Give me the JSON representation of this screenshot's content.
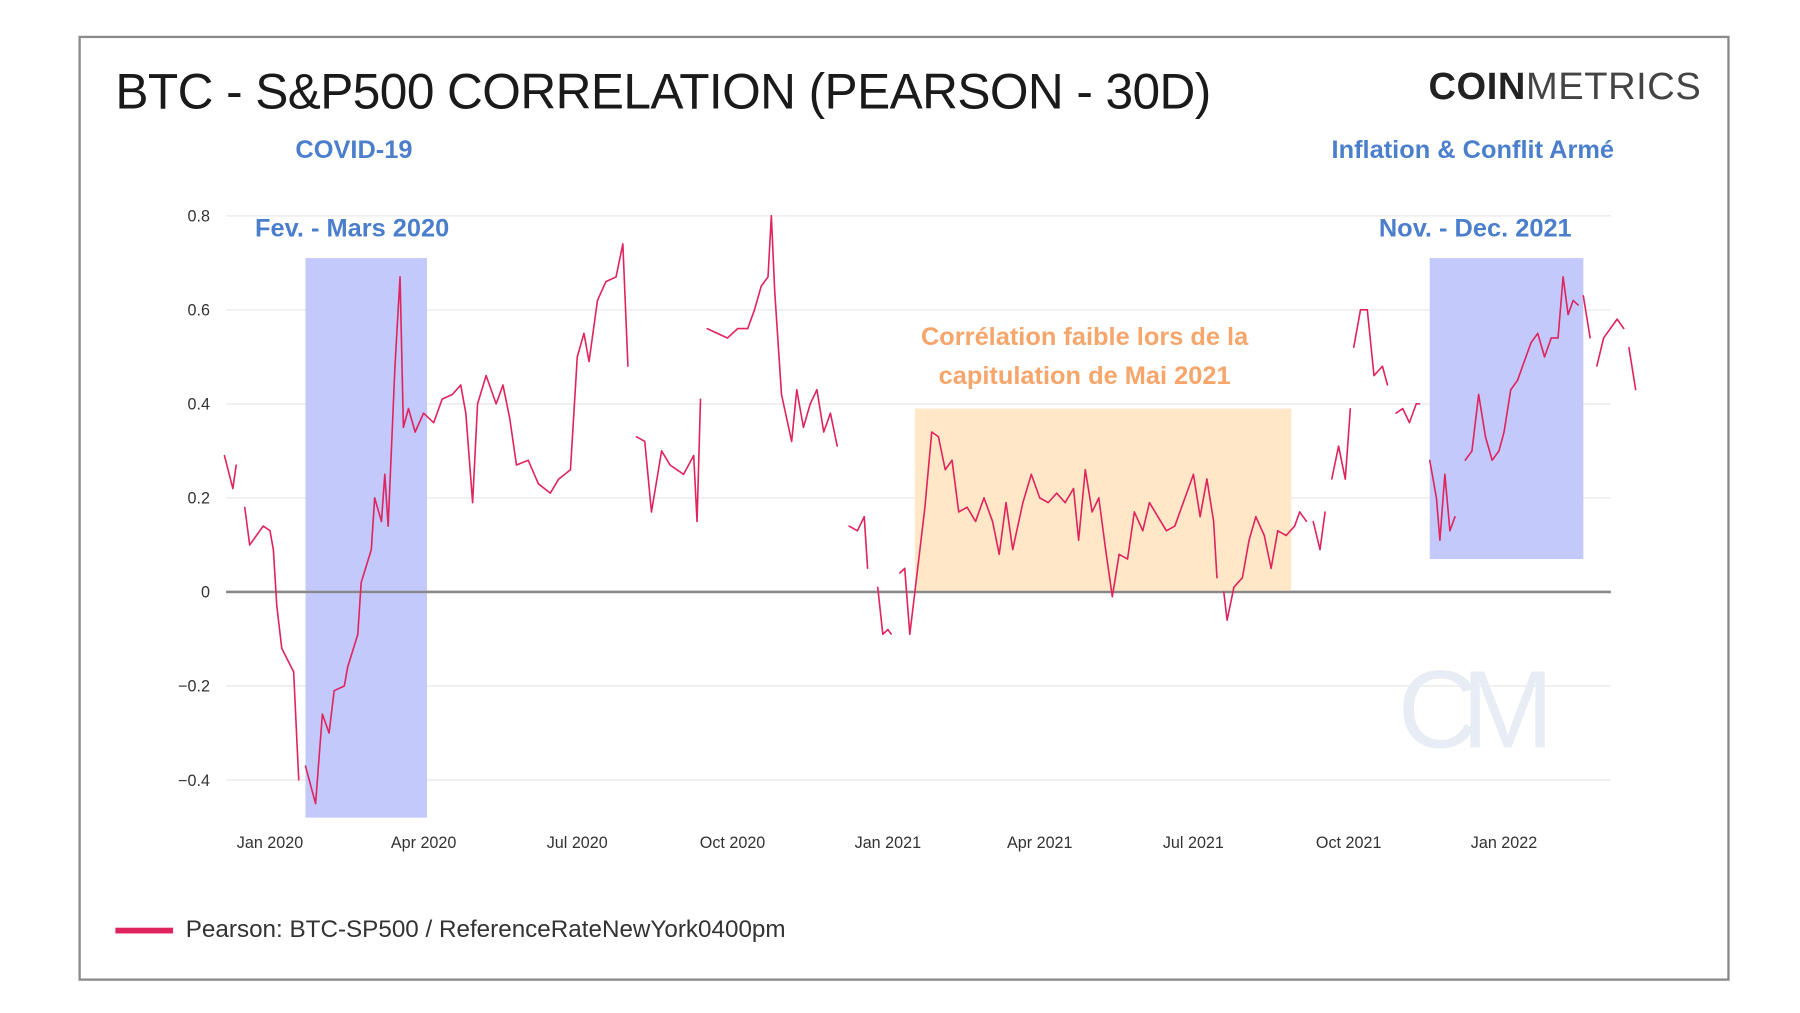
{
  "title": "BTC - S&P500 CORRELATION (PEARSON - 30D)",
  "logo": {
    "bold": "COIN",
    "light": "METRICS",
    "watermark": "CM"
  },
  "annotations": {
    "covid": "COVID-19",
    "covid_period": "Fev. - Mars 2020",
    "inflation": "Inflation & Conflit Armé",
    "inflation_period": "Nov. - Dec. 2021",
    "weak_line1": "Corrélation faible lors de la",
    "weak_line2": "capitulation de Mai 2021"
  },
  "legend": {
    "label": "Pearson: BTC-SP500 / ReferenceRateNewYork0400pm"
  },
  "colors": {
    "line": "#e0245e",
    "blue_region": "#c3c9fb",
    "orange_region": "#ffe7c7",
    "blue_text": "#4b7fcc",
    "orange_text": "#f6a56b"
  },
  "chart_data": {
    "type": "line",
    "title": "BTC - S&P500 CORRELATION (PEARSON - 30D)",
    "xlabel": "",
    "ylabel": "",
    "ylim": [
      -0.48,
      0.8
    ],
    "xlim": [
      "2019-12-05",
      "2022-03-20"
    ],
    "grid": true,
    "legend_position": "bottom-left",
    "y_ticks": [
      0.8,
      0.6,
      0.4,
      0.2,
      0,
      -0.2,
      -0.4
    ],
    "y_tick_labels": [
      "0.8",
      "0.6",
      "0.4",
      "0.2",
      "0",
      "−0.2",
      "−0.4"
    ],
    "x_ticks": [
      "2020-01-01",
      "2020-04-01",
      "2020-07-01",
      "2020-10-01",
      "2021-01-01",
      "2021-04-01",
      "2021-07-01",
      "2021-10-01",
      "2022-01-01"
    ],
    "x_tick_labels": [
      "Jan 2020",
      "Apr 2020",
      "Jul 2020",
      "Oct 2020",
      "Jan 2021",
      "Apr 2021",
      "Jul 2021",
      "Oct 2021",
      "Jan 2022"
    ],
    "regions": [
      {
        "x": [
          "2020-01-22",
          "2020-04-03"
        ],
        "y": [
          -0.48,
          0.71
        ],
        "color": "blue"
      },
      {
        "x": [
          "2021-01-17",
          "2021-08-28"
        ],
        "y": [
          0,
          0.39
        ],
        "color": "orange"
      },
      {
        "x": [
          "2021-11-18",
          "2022-02-17"
        ],
        "y": [
          0.07,
          0.71
        ],
        "color": "blue"
      }
    ],
    "series": [
      {
        "name": "Pearson: BTC-SP500 / ReferenceRateNewYork0400pm",
        "points": [
          [
            "2019-12-05",
            0.29
          ],
          [
            "2019-12-10",
            0.22
          ],
          [
            "2019-12-12",
            0.27
          ],
          [
            "2019-12-14",
            null
          ],
          [
            "2019-12-17",
            0.18
          ],
          [
            "2019-12-20",
            0.1
          ],
          [
            "2019-12-28",
            0.14
          ],
          [
            "2020-01-01",
            0.13
          ],
          [
            "2020-01-03",
            0.09
          ],
          [
            "2020-01-05",
            -0.03
          ],
          [
            "2020-01-08",
            -0.12
          ],
          [
            "2020-01-15",
            -0.17
          ],
          [
            "2020-01-18",
            -0.4
          ],
          [
            "2020-01-20",
            null
          ],
          [
            "2020-01-22",
            -0.37
          ],
          [
            "2020-01-28",
            -0.45
          ],
          [
            "2020-02-01",
            -0.26
          ],
          [
            "2020-02-05",
            -0.3
          ],
          [
            "2020-02-08",
            -0.21
          ],
          [
            "2020-02-14",
            -0.2
          ],
          [
            "2020-02-16",
            -0.16
          ],
          [
            "2020-02-22",
            -0.09
          ],
          [
            "2020-02-24",
            0.02
          ],
          [
            "2020-03-01",
            0.09
          ],
          [
            "2020-03-03",
            0.2
          ],
          [
            "2020-03-07",
            0.15
          ],
          [
            "2020-03-09",
            0.25
          ],
          [
            "2020-03-11",
            0.14
          ],
          [
            "2020-03-15",
            0.48
          ],
          [
            "2020-03-18",
            0.67
          ],
          [
            "2020-03-20",
            0.35
          ],
          [
            "2020-03-23",
            0.39
          ],
          [
            "2020-03-27",
            0.34
          ],
          [
            "2020-04-01",
            0.38
          ],
          [
            "2020-04-07",
            0.36
          ],
          [
            "2020-04-12",
            0.41
          ],
          [
            "2020-04-18",
            0.42
          ],
          [
            "2020-04-23",
            0.44
          ],
          [
            "2020-04-26",
            0.38
          ],
          [
            "2020-04-30",
            0.19
          ],
          [
            "2020-05-03",
            0.4
          ],
          [
            "2020-05-08",
            0.46
          ],
          [
            "2020-05-14",
            0.4
          ],
          [
            "2020-05-18",
            0.44
          ],
          [
            "2020-05-22",
            0.37
          ],
          [
            "2020-05-26",
            0.27
          ],
          [
            "2020-06-02",
            0.28
          ],
          [
            "2020-06-08",
            0.23
          ],
          [
            "2020-06-15",
            0.21
          ],
          [
            "2020-06-20",
            0.24
          ],
          [
            "2020-06-27",
            0.26
          ],
          [
            "2020-07-01",
            0.5
          ],
          [
            "2020-07-05",
            0.55
          ],
          [
            "2020-07-08",
            0.49
          ],
          [
            "2020-07-13",
            0.62
          ],
          [
            "2020-07-18",
            0.66
          ],
          [
            "2020-07-24",
            0.67
          ],
          [
            "2020-07-28",
            0.74
          ],
          [
            "2020-07-31",
            0.48
          ],
          [
            "2020-08-02",
            null
          ],
          [
            "2020-08-05",
            0.33
          ],
          [
            "2020-08-10",
            0.32
          ],
          [
            "2020-08-14",
            0.17
          ],
          [
            "2020-08-20",
            0.3
          ],
          [
            "2020-08-25",
            0.27
          ],
          [
            "2020-09-02",
            0.25
          ],
          [
            "2020-09-08",
            0.29
          ],
          [
            "2020-09-10",
            0.15
          ],
          [
            "2020-09-12",
            0.41
          ],
          [
            "2020-09-14",
            null
          ],
          [
            "2020-09-16",
            0.56
          ],
          [
            "2020-09-22",
            0.55
          ],
          [
            "2020-09-28",
            0.54
          ],
          [
            "2020-10-04",
            0.56
          ],
          [
            "2020-10-10",
            0.56
          ],
          [
            "2020-10-14",
            0.6
          ],
          [
            "2020-10-18",
            0.65
          ],
          [
            "2020-10-22",
            0.67
          ],
          [
            "2020-10-24",
            0.8
          ],
          [
            "2020-10-26",
            0.64
          ],
          [
            "2020-10-30",
            0.42
          ],
          [
            "2020-11-02",
            0.37
          ],
          [
            "2020-11-05",
            0.32
          ],
          [
            "2020-11-08",
            0.43
          ],
          [
            "2020-11-12",
            0.35
          ],
          [
            "2020-11-16",
            0.4
          ],
          [
            "2020-11-20",
            0.43
          ],
          [
            "2020-11-24",
            0.34
          ],
          [
            "2020-11-28",
            0.38
          ],
          [
            "2020-12-02",
            0.31
          ],
          [
            "2020-12-05",
            null
          ],
          [
            "2020-12-09",
            0.14
          ],
          [
            "2020-12-14",
            0.13
          ],
          [
            "2020-12-18",
            0.16
          ],
          [
            "2020-12-20",
            0.05
          ],
          [
            "2020-12-23",
            null
          ],
          [
            "2020-12-26",
            0.01
          ],
          [
            "2020-12-29",
            -0.09
          ],
          [
            "2021-01-01",
            -0.08
          ],
          [
            "2021-01-03",
            -0.09
          ],
          [
            "2021-01-05",
            null
          ],
          [
            "2021-01-08",
            0.04
          ],
          [
            "2021-01-11",
            0.05
          ],
          [
            "2021-01-14",
            -0.09
          ],
          [
            "2021-01-19",
            0.06
          ],
          [
            "2021-01-23",
            0.18
          ],
          [
            "2021-01-27",
            0.34
          ],
          [
            "2021-01-31",
            0.33
          ],
          [
            "2021-02-04",
            0.26
          ],
          [
            "2021-02-08",
            0.28
          ],
          [
            "2021-02-12",
            0.17
          ],
          [
            "2021-02-17",
            0.18
          ],
          [
            "2021-02-22",
            0.15
          ],
          [
            "2021-02-27",
            0.2
          ],
          [
            "2021-03-04",
            0.15
          ],
          [
            "2021-03-08",
            0.08
          ],
          [
            "2021-03-12",
            0.19
          ],
          [
            "2021-03-16",
            0.09
          ],
          [
            "2021-03-22",
            0.19
          ],
          [
            "2021-03-27",
            0.25
          ],
          [
            "2021-04-01",
            0.2
          ],
          [
            "2021-04-06",
            0.19
          ],
          [
            "2021-04-11",
            0.21
          ],
          [
            "2021-04-16",
            0.19
          ],
          [
            "2021-04-21",
            0.22
          ],
          [
            "2021-04-24",
            0.11
          ],
          [
            "2021-04-28",
            0.26
          ],
          [
            "2021-05-02",
            0.17
          ],
          [
            "2021-05-06",
            0.2
          ],
          [
            "2021-05-10",
            0.09
          ],
          [
            "2021-05-14",
            -0.01
          ],
          [
            "2021-05-18",
            0.08
          ],
          [
            "2021-05-23",
            0.07
          ],
          [
            "2021-05-27",
            0.17
          ],
          [
            "2021-06-01",
            0.13
          ],
          [
            "2021-06-05",
            0.19
          ],
          [
            "2021-06-10",
            0.16
          ],
          [
            "2021-06-15",
            0.13
          ],
          [
            "2021-06-20",
            0.14
          ],
          [
            "2021-06-25",
            0.19
          ],
          [
            "2021-07-01",
            0.25
          ],
          [
            "2021-07-05",
            0.16
          ],
          [
            "2021-07-09",
            0.24
          ],
          [
            "2021-07-13",
            0.15
          ],
          [
            "2021-07-15",
            0.03
          ],
          [
            "2021-07-17",
            null
          ],
          [
            "2021-07-19",
            0.0
          ],
          [
            "2021-07-21",
            -0.06
          ],
          [
            "2021-07-25",
            0.01
          ],
          [
            "2021-07-30",
            0.03
          ],
          [
            "2021-08-03",
            0.11
          ],
          [
            "2021-08-07",
            0.16
          ],
          [
            "2021-08-12",
            0.12
          ],
          [
            "2021-08-16",
            0.05
          ],
          [
            "2021-08-20",
            0.13
          ],
          [
            "2021-08-25",
            0.12
          ],
          [
            "2021-08-30",
            0.14
          ],
          [
            "2021-09-02",
            0.17
          ],
          [
            "2021-09-06",
            0.15
          ],
          [
            "2021-09-08",
            null
          ],
          [
            "2021-09-10",
            0.15
          ],
          [
            "2021-09-14",
            0.09
          ],
          [
            "2021-09-17",
            0.17
          ],
          [
            "2021-09-19",
            null
          ],
          [
            "2021-09-21",
            0.24
          ],
          [
            "2021-09-25",
            0.31
          ],
          [
            "2021-09-29",
            0.24
          ],
          [
            "2021-10-02",
            0.39
          ],
          [
            "2021-10-03",
            null
          ],
          [
            "2021-10-04",
            0.52
          ],
          [
            "2021-10-08",
            0.6
          ],
          [
            "2021-10-12",
            0.6
          ],
          [
            "2021-10-16",
            0.46
          ],
          [
            "2021-10-21",
            0.48
          ],
          [
            "2021-10-24",
            0.44
          ],
          [
            "2021-10-26",
            null
          ],
          [
            "2021-10-29",
            0.38
          ],
          [
            "2021-11-02",
            0.39
          ],
          [
            "2021-11-06",
            0.36
          ],
          [
            "2021-11-10",
            0.4
          ],
          [
            "2021-11-12",
            0.4
          ],
          [
            "2021-11-15",
            null
          ],
          [
            "2021-11-18",
            0.28
          ],
          [
            "2021-11-22",
            0.2
          ],
          [
            "2021-11-24",
            0.11
          ],
          [
            "2021-11-27",
            0.25
          ],
          [
            "2021-11-30",
            0.13
          ],
          [
            "2021-12-03",
            0.16
          ],
          [
            "2021-12-06",
            null
          ],
          [
            "2021-12-09",
            0.28
          ],
          [
            "2021-12-13",
            0.3
          ],
          [
            "2021-12-17",
            0.42
          ],
          [
            "2021-12-21",
            0.33
          ],
          [
            "2021-12-25",
            0.28
          ],
          [
            "2021-12-29",
            0.3
          ],
          [
            "2022-01-01",
            0.34
          ],
          [
            "2022-01-05",
            0.43
          ],
          [
            "2022-01-09",
            0.45
          ],
          [
            "2022-01-13",
            0.49
          ],
          [
            "2022-01-17",
            0.53
          ],
          [
            "2022-01-21",
            0.55
          ],
          [
            "2022-01-25",
            0.5
          ],
          [
            "2022-01-29",
            0.54
          ],
          [
            "2022-02-02",
            0.54
          ],
          [
            "2022-02-05",
            0.67
          ],
          [
            "2022-02-08",
            0.59
          ],
          [
            "2022-02-11",
            0.62
          ],
          [
            "2022-02-14",
            0.61
          ],
          [
            "2022-02-15",
            null
          ],
          [
            "2022-02-17",
            0.63
          ],
          [
            "2022-02-21",
            0.54
          ],
          [
            "2022-02-23",
            null
          ],
          [
            "2022-02-25",
            0.48
          ],
          [
            "2022-03-01",
            0.54
          ],
          [
            "2022-03-05",
            0.56
          ],
          [
            "2022-03-09",
            0.58
          ],
          [
            "2022-03-13",
            0.56
          ],
          [
            "2022-03-14",
            null
          ],
          [
            "2022-03-16",
            0.52
          ],
          [
            "2022-03-20",
            0.43
          ]
        ]
      }
    ]
  }
}
